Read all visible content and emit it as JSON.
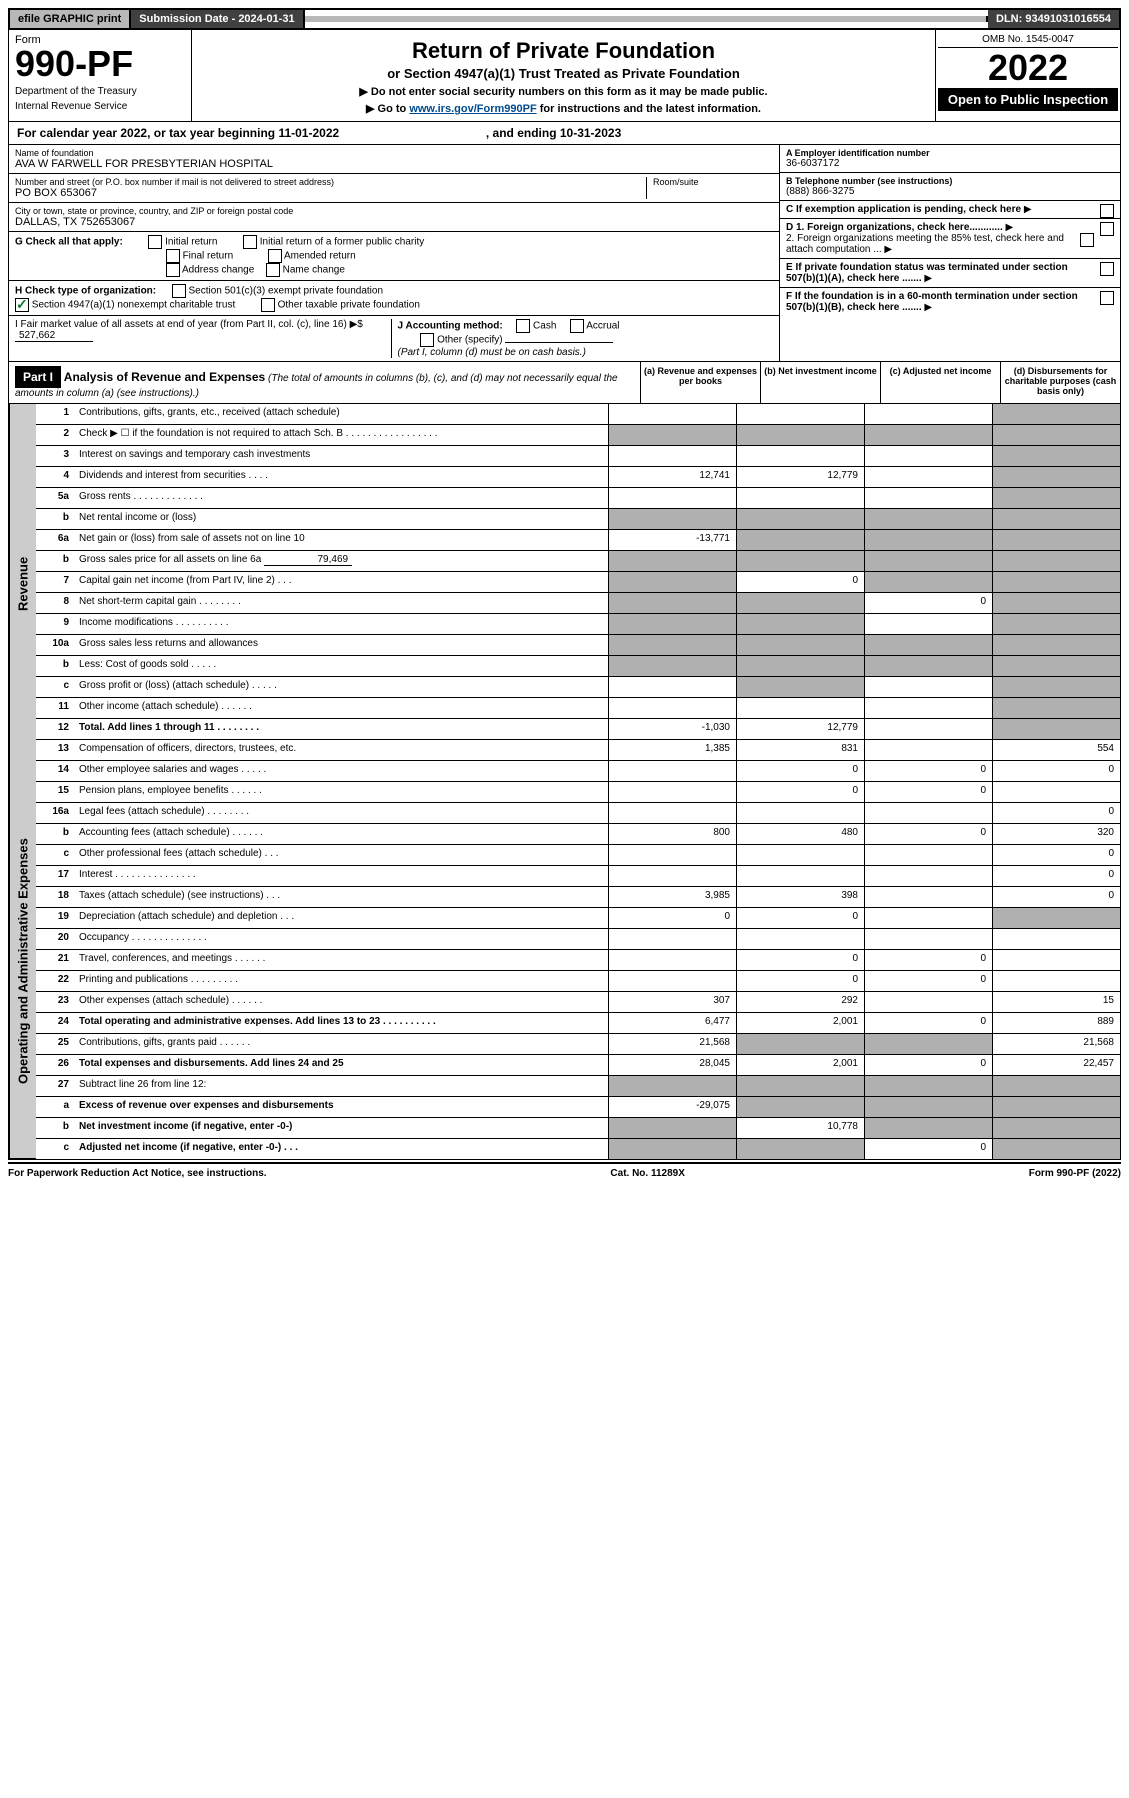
{
  "top_bar": {
    "efile": "efile GRAPHIC print",
    "submission_label": "Submission Date - 2024-01-31",
    "dln": "DLN: 93491031016554"
  },
  "header": {
    "form_label": "Form",
    "form_no": "990-PF",
    "dept": "Department of the Treasury",
    "irs": "Internal Revenue Service",
    "title": "Return of Private Foundation",
    "subtitle": "or Section 4947(a)(1) Trust Treated as Private Foundation",
    "note1": "▶ Do not enter social security numbers on this form as it may be made public.",
    "note2_pre": "▶ Go to ",
    "note2_link": "www.irs.gov/Form990PF",
    "note2_post": " for instructions and the latest information.",
    "omb": "OMB No. 1545-0047",
    "year": "2022",
    "open": "Open to Public Inspection"
  },
  "calendar": {
    "text_a": "For calendar year 2022, or tax year beginning 11-01-2022",
    "text_b": ", and ending 10-31-2023"
  },
  "entity": {
    "name_label": "Name of foundation",
    "name": "AVA W FARWELL FOR PRESBYTERIAN HOSPITAL",
    "addr_label": "Number and street (or P.O. box number if mail is not delivered to street address)",
    "addr": "PO BOX 653067",
    "room_label": "Room/suite",
    "city_label": "City or town, state or province, country, and ZIP or foreign postal code",
    "city": "DALLAS, TX  752653067",
    "ein_label": "A Employer identification number",
    "ein": "36-6037172",
    "phone_label": "B Telephone number (see instructions)",
    "phone": "(888) 866-3275",
    "c_label": "C If exemption application is pending, check here",
    "d1": "D 1. Foreign organizations, check here............",
    "d2": "2. Foreign organizations meeting the 85% test, check here and attach computation ...",
    "e": "E If private foundation status was terminated under section 507(b)(1)(A), check here .......",
    "f": "F If the foundation is in a 60-month termination under section 507(b)(1)(B), check here .......",
    "g_label": "G Check all that apply:",
    "g_initial": "Initial return",
    "g_initial_former": "Initial return of a former public charity",
    "g_final": "Final return",
    "g_amended": "Amended return",
    "g_addrchg": "Address change",
    "g_namechg": "Name change",
    "h_label": "H Check type of organization:",
    "h_501c3": "Section 501(c)(3) exempt private foundation",
    "h_4947": "Section 4947(a)(1) nonexempt charitable trust",
    "h_other": "Other taxable private foundation",
    "i_label": "I Fair market value of all assets at end of year (from Part II, col. (c), line 16) ▶$",
    "i_value": "527,662",
    "j_label": "J Accounting method:",
    "j_cash": "Cash",
    "j_accrual": "Accrual",
    "j_other": "Other (specify)",
    "j_note": "(Part I, column (d) must be on cash basis.)"
  },
  "part1": {
    "label": "Part I",
    "title": "Analysis of Revenue and Expenses",
    "title_note": "(The total of amounts in columns (b), (c), and (d) may not necessarily equal the amounts in column (a) (see instructions).)",
    "col_a": "(a) Revenue and expenses per books",
    "col_b": "(b) Net investment income",
    "col_c": "(c) Adjusted net income",
    "col_d": "(d) Disbursements for charitable purposes (cash basis only)"
  },
  "revenue_label": "Revenue",
  "oae_label": "Operating and Administrative Expenses",
  "lines": {
    "l1": {
      "no": "1",
      "desc": "Contributions, gifts, grants, etc., received (attach schedule)",
      "a": "",
      "b": "",
      "c": "",
      "d": "",
      "shade": [
        "d"
      ]
    },
    "l2": {
      "no": "2",
      "desc": "Check ▶ ☐ if the foundation is not required to attach Sch. B  . . . . . . . . . . . . . . . . .",
      "a": "",
      "b": "",
      "c": "",
      "d": "",
      "shade": [
        "a",
        "b",
        "c",
        "d"
      ]
    },
    "l3": {
      "no": "3",
      "desc": "Interest on savings and temporary cash investments",
      "a": "",
      "b": "",
      "c": "",
      "d": "",
      "shade": [
        "d"
      ]
    },
    "l4": {
      "no": "4",
      "desc": "Dividends and interest from securities  . . . .",
      "a": "12,741",
      "b": "12,779",
      "c": "",
      "d": "",
      "shade": [
        "d"
      ]
    },
    "l5a": {
      "no": "5a",
      "desc": "Gross rents  . . . . . . . . . . . . .",
      "a": "",
      "b": "",
      "c": "",
      "d": "",
      "shade": [
        "d"
      ]
    },
    "l5b": {
      "no": "b",
      "desc": "Net rental income or (loss)",
      "a": "",
      "b": "",
      "c": "",
      "d": "",
      "shade": [
        "a",
        "b",
        "c",
        "d"
      ]
    },
    "l6a": {
      "no": "6a",
      "desc": "Net gain or (loss) from sale of assets not on line 10",
      "a": "-13,771",
      "b": "",
      "c": "",
      "d": "",
      "shade": [
        "b",
        "c",
        "d"
      ]
    },
    "l6b": {
      "no": "b",
      "desc": "Gross sales price for all assets on line 6a",
      "inline": "79,469",
      "a": "",
      "b": "",
      "c": "",
      "d": "",
      "shade": [
        "a",
        "b",
        "c",
        "d"
      ]
    },
    "l7": {
      "no": "7",
      "desc": "Capital gain net income (from Part IV, line 2)  . . .",
      "a": "",
      "b": "0",
      "c": "",
      "d": "",
      "shade": [
        "a",
        "c",
        "d"
      ]
    },
    "l8": {
      "no": "8",
      "desc": "Net short-term capital gain  . . . . . . . .",
      "a": "",
      "b": "",
      "c": "0",
      "d": "",
      "shade": [
        "a",
        "b",
        "d"
      ]
    },
    "l9": {
      "no": "9",
      "desc": "Income modifications  . . . . . . . . . .",
      "a": "",
      "b": "",
      "c": "",
      "d": "",
      "shade": [
        "a",
        "b",
        "d"
      ]
    },
    "l10a": {
      "no": "10a",
      "desc": "Gross sales less returns and allowances",
      "a": "",
      "b": "",
      "c": "",
      "d": "",
      "shade": [
        "a",
        "b",
        "c",
        "d"
      ]
    },
    "l10b": {
      "no": "b",
      "desc": "Less: Cost of goods sold  . . . . .",
      "a": "",
      "b": "",
      "c": "",
      "d": "",
      "shade": [
        "a",
        "b",
        "c",
        "d"
      ]
    },
    "l10c": {
      "no": "c",
      "desc": "Gross profit or (loss) (attach schedule)  . . . . .",
      "a": "",
      "b": "",
      "c": "",
      "d": "",
      "shade": [
        "b",
        "d"
      ]
    },
    "l11": {
      "no": "11",
      "desc": "Other income (attach schedule)  . . . . . .",
      "a": "",
      "b": "",
      "c": "",
      "d": "",
      "shade": [
        "d"
      ]
    },
    "l12": {
      "no": "12",
      "desc": "Total. Add lines 1 through 11  . . . . . . . .",
      "a": "-1,030",
      "b": "12,779",
      "c": "",
      "d": "",
      "shade": [
        "d"
      ],
      "bold": true
    },
    "l13": {
      "no": "13",
      "desc": "Compensation of officers, directors, trustees, etc.",
      "a": "1,385",
      "b": "831",
      "c": "",
      "d": "554"
    },
    "l14": {
      "no": "14",
      "desc": "Other employee salaries and wages  . . . . .",
      "a": "",
      "b": "0",
      "c": "0",
      "d": "0"
    },
    "l15": {
      "no": "15",
      "desc": "Pension plans, employee benefits  . . . . . .",
      "a": "",
      "b": "0",
      "c": "0",
      "d": ""
    },
    "l16a": {
      "no": "16a",
      "desc": "Legal fees (attach schedule)  . . . . . . . .",
      "a": "",
      "b": "",
      "c": "",
      "d": "0"
    },
    "l16b": {
      "no": "b",
      "desc": "Accounting fees (attach schedule)  . . . . . .",
      "a": "800",
      "b": "480",
      "c": "0",
      "d": "320"
    },
    "l16c": {
      "no": "c",
      "desc": "Other professional fees (attach schedule)  . . .",
      "a": "",
      "b": "",
      "c": "",
      "d": "0"
    },
    "l17": {
      "no": "17",
      "desc": "Interest  . . . . . . . . . . . . . . .",
      "a": "",
      "b": "",
      "c": "",
      "d": "0"
    },
    "l18": {
      "no": "18",
      "desc": "Taxes (attach schedule) (see instructions)  . . .",
      "a": "3,985",
      "b": "398",
      "c": "",
      "d": "0"
    },
    "l19": {
      "no": "19",
      "desc": "Depreciation (attach schedule) and depletion  . . .",
      "a": "0",
      "b": "0",
      "c": "",
      "d": "",
      "shade": [
        "d"
      ]
    },
    "l20": {
      "no": "20",
      "desc": "Occupancy  . . . . . . . . . . . . . .",
      "a": "",
      "b": "",
      "c": "",
      "d": ""
    },
    "l21": {
      "no": "21",
      "desc": "Travel, conferences, and meetings  . . . . . .",
      "a": "",
      "b": "0",
      "c": "0",
      "d": ""
    },
    "l22": {
      "no": "22",
      "desc": "Printing and publications  . . . . . . . . .",
      "a": "",
      "b": "0",
      "c": "0",
      "d": ""
    },
    "l23": {
      "no": "23",
      "desc": "Other expenses (attach schedule)  . . . . . .",
      "a": "307",
      "b": "292",
      "c": "",
      "d": "15"
    },
    "l24": {
      "no": "24",
      "desc": "Total operating and administrative expenses. Add lines 13 to 23  . . . . . . . . . .",
      "a": "6,477",
      "b": "2,001",
      "c": "0",
      "d": "889",
      "bold": true
    },
    "l25": {
      "no": "25",
      "desc": "Contributions, gifts, grants paid  . . . . . .",
      "a": "21,568",
      "b": "",
      "c": "",
      "d": "21,568",
      "shade": [
        "b",
        "c"
      ]
    },
    "l26": {
      "no": "26",
      "desc": "Total expenses and disbursements. Add lines 24 and 25",
      "a": "28,045",
      "b": "2,001",
      "c": "0",
      "d": "22,457",
      "bold": true
    },
    "l27": {
      "no": "27",
      "desc": "Subtract line 26 from line 12:",
      "a": "",
      "b": "",
      "c": "",
      "d": "",
      "shade": [
        "a",
        "b",
        "c",
        "d"
      ]
    },
    "l27a": {
      "no": "a",
      "desc": "Excess of revenue over expenses and disbursements",
      "a": "-29,075",
      "b": "",
      "c": "",
      "d": "",
      "shade": [
        "b",
        "c",
        "d"
      ],
      "bold": true
    },
    "l27b": {
      "no": "b",
      "desc": "Net investment income (if negative, enter -0-)",
      "a": "",
      "b": "10,778",
      "c": "",
      "d": "",
      "shade": [
        "a",
        "c",
        "d"
      ],
      "bold": true
    },
    "l27c": {
      "no": "c",
      "desc": "Adjusted net income (if negative, enter -0-)  . . .",
      "a": "",
      "b": "",
      "c": "0",
      "d": "",
      "shade": [
        "a",
        "b",
        "d"
      ],
      "bold": true
    }
  },
  "footer": {
    "left": "For Paperwork Reduction Act Notice, see instructions.",
    "center": "Cat. No. 11289X",
    "right": "Form 990-PF (2022)"
  }
}
